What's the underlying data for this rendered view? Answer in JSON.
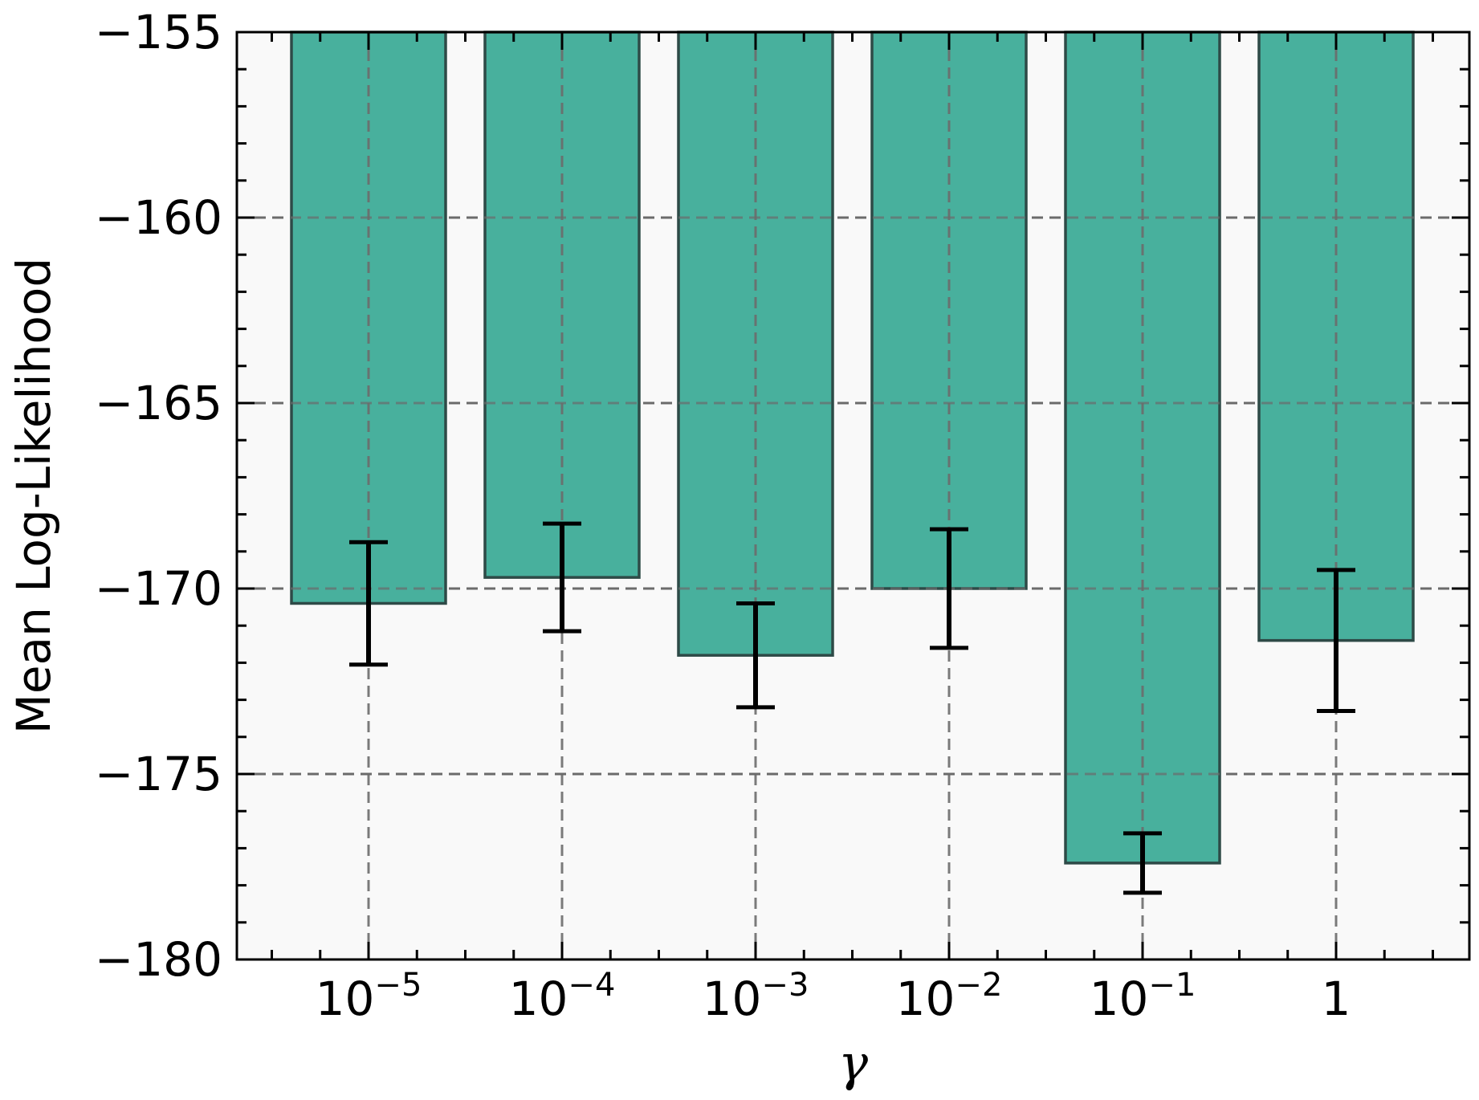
{
  "chart_data": {
    "type": "bar",
    "categories": [
      {
        "base": "10",
        "exp": "−5"
      },
      {
        "base": "10",
        "exp": "−4"
      },
      {
        "base": "10",
        "exp": "−3"
      },
      {
        "base": "10",
        "exp": "−2"
      },
      {
        "base": "10",
        "exp": "−1"
      },
      {
        "base": "1",
        "exp": ""
      }
    ],
    "values": [
      -170.4,
      -169.7,
      -171.8,
      -170.0,
      -177.4,
      -171.4
    ],
    "errors": [
      1.65,
      1.45,
      1.4,
      1.6,
      0.8,
      1.9
    ],
    "title": "",
    "xlabel": "γ",
    "ylabel": "Mean Log-Likelihood",
    "ylim": [
      -180,
      -155
    ],
    "yticks": [
      -155,
      -160,
      -165,
      -170,
      -175,
      -180
    ],
    "ytick_labels": [
      "−155",
      "−160",
      "−165",
      "−170",
      "−175",
      "−180"
    ],
    "grid": true,
    "legend": "none"
  },
  "colors": {
    "bar_fill": "#48b09d",
    "bar_edge": "#2e4a47",
    "plot_bg": "#f9f9f9",
    "grid": "#6b6b6b",
    "error_bar": "#000000"
  }
}
